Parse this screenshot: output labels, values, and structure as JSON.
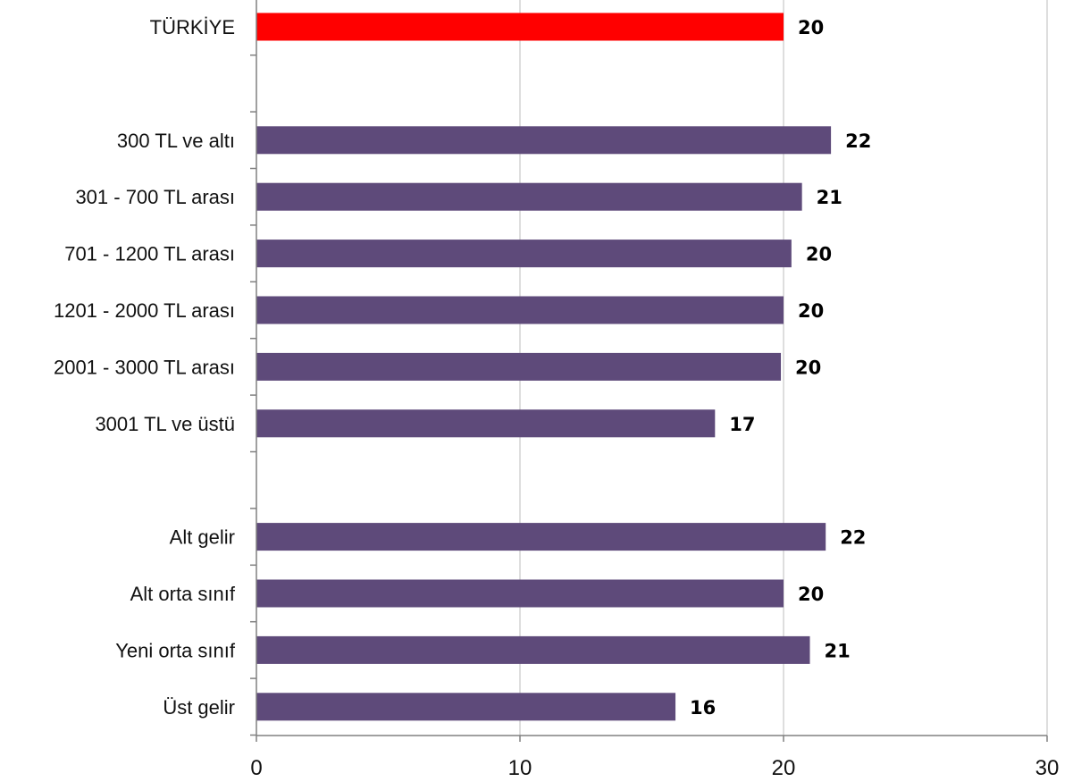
{
  "chart_data": {
    "type": "bar",
    "orientation": "horizontal",
    "title": "",
    "xlabel": "",
    "ylabel": "",
    "xlim": [
      0,
      30
    ],
    "x_ticks": [
      0,
      10,
      20,
      30
    ],
    "grid": "vertical",
    "categories": [
      "TÜRKİYE",
      "",
      "300 TL ve altı",
      "301 - 700 TL arası",
      "701 - 1200 TL arası",
      "1201 - 2000 TL arası",
      "2001 - 3000 TL arası",
      "3001 TL ve üstü",
      "",
      "Alt gelir",
      "Alt orta sınıf",
      "Yeni orta sınıf",
      "Üst gelir"
    ],
    "values": [
      20,
      null,
      21.8,
      20.7,
      20.3,
      20.0,
      19.9,
      17.4,
      null,
      21.6,
      20.0,
      21.0,
      15.9
    ],
    "data_labels": [
      "20",
      "",
      "22",
      "21",
      "20",
      "20",
      "20",
      "17",
      "",
      "22",
      "20",
      "21",
      "16"
    ],
    "highlight_index": 0,
    "colors": {
      "highlight": "#ff0000",
      "bar": "#5e4a7a",
      "grid": "#d4d4d4",
      "axis": "#808080"
    }
  }
}
